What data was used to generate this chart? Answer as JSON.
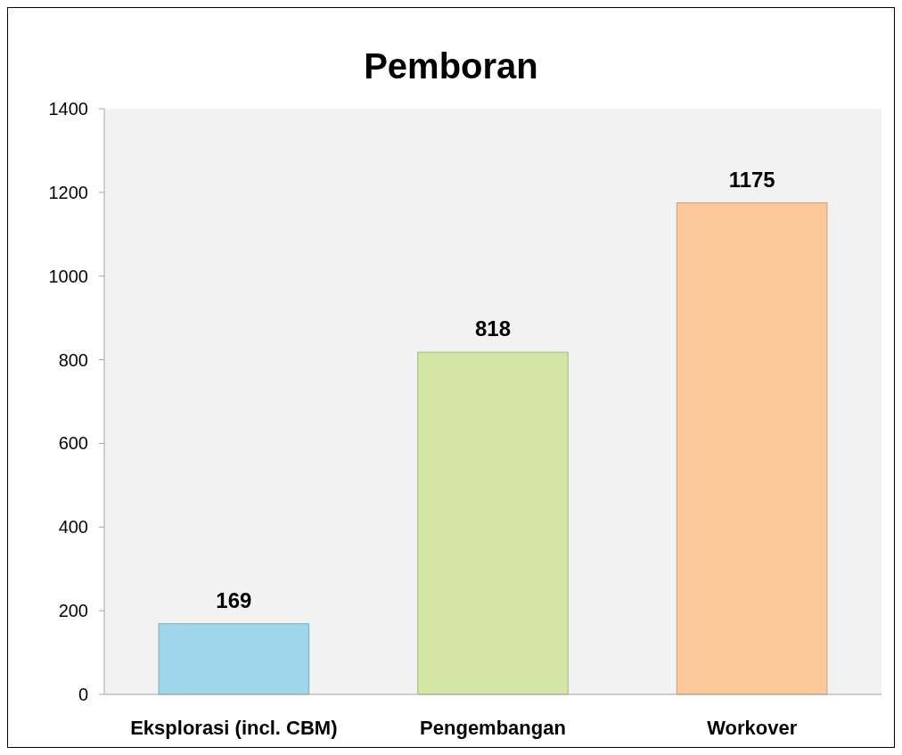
{
  "chart_data": {
    "type": "bar",
    "title": "Pemboran",
    "categories": [
      "Eksplorasi (incl. CBM)",
      "Pengembangan",
      "Workover"
    ],
    "values": [
      169,
      818,
      1175
    ],
    "colors": [
      "#9dd7e9",
      "#d4e6a5",
      "#fcc89a"
    ],
    "ylim": [
      0,
      1400
    ],
    "yticks": [
      0,
      200,
      400,
      600,
      800,
      1000,
      1200,
      1400
    ],
    "data_labels": true,
    "grid": false
  }
}
